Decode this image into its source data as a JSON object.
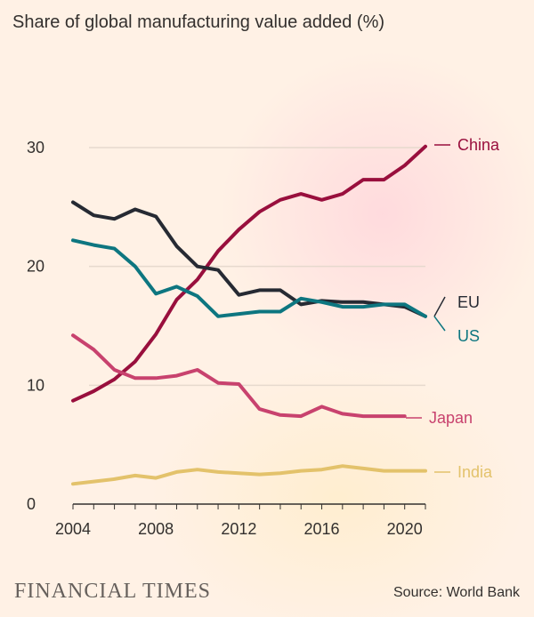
{
  "header": {
    "title": "Share of global manufacturing value added (%)"
  },
  "footer": {
    "brand": "FINANCIAL TIMES",
    "source": "Source: World Bank"
  },
  "chart_data": {
    "type": "line",
    "title": "Share of global manufacturing value added (%)",
    "xlabel": "",
    "ylabel": "",
    "xlim": [
      2004,
      2021
    ],
    "ylim": [
      0,
      30
    ],
    "x_ticks": [
      2004,
      2008,
      2012,
      2016,
      2020
    ],
    "y_ticks": [
      0,
      10,
      20,
      30
    ],
    "grid": true,
    "legend": "direct labels at right end of lines",
    "series": [
      {
        "name": "China",
        "color": "#990f3d",
        "x": [
          2004,
          2005,
          2006,
          2007,
          2008,
          2009,
          2010,
          2011,
          2012,
          2013,
          2014,
          2015,
          2016,
          2017,
          2018,
          2019,
          2020,
          2021
        ],
        "values": [
          8.7,
          9.5,
          10.5,
          12.0,
          14.3,
          17.2,
          18.9,
          21.3,
          23.1,
          24.6,
          25.6,
          26.1,
          25.6,
          26.1,
          27.3,
          27.3,
          28.5,
          30.1
        ]
      },
      {
        "name": "EU",
        "color": "#262a33",
        "x": [
          2004,
          2005,
          2006,
          2007,
          2008,
          2009,
          2010,
          2011,
          2012,
          2013,
          2014,
          2015,
          2016,
          2017,
          2018,
          2019,
          2020,
          2021
        ],
        "values": [
          25.4,
          24.3,
          24.0,
          24.8,
          24.2,
          21.7,
          20.0,
          19.7,
          17.6,
          18.0,
          18.0,
          16.8,
          17.1,
          17.0,
          17.0,
          16.8,
          16.6,
          15.8
        ]
      },
      {
        "name": "US",
        "color": "#0d7680",
        "x": [
          2004,
          2005,
          2006,
          2007,
          2008,
          2009,
          2010,
          2011,
          2012,
          2013,
          2014,
          2015,
          2016,
          2017,
          2018,
          2019,
          2020,
          2021
        ],
        "values": [
          22.2,
          21.8,
          21.5,
          20.0,
          17.7,
          18.3,
          17.5,
          15.8,
          16.0,
          16.2,
          16.2,
          17.3,
          17.0,
          16.6,
          16.6,
          16.8,
          16.8,
          15.8
        ]
      },
      {
        "name": "Japan",
        "color": "#c8426e",
        "x": [
          2004,
          2005,
          2006,
          2007,
          2008,
          2009,
          2010,
          2011,
          2012,
          2013,
          2014,
          2015,
          2016,
          2017,
          2018,
          2019,
          2020
        ],
        "values": [
          14.2,
          13.0,
          11.3,
          10.6,
          10.6,
          10.8,
          11.3,
          10.2,
          10.1,
          8.0,
          7.5,
          7.4,
          8.2,
          7.6,
          7.4,
          7.4,
          7.4
        ]
      },
      {
        "name": "India",
        "color": "#e3c26b",
        "x": [
          2004,
          2005,
          2006,
          2007,
          2008,
          2009,
          2010,
          2011,
          2012,
          2013,
          2014,
          2015,
          2016,
          2017,
          2018,
          2019,
          2020,
          2021
        ],
        "values": [
          1.7,
          1.9,
          2.1,
          2.4,
          2.2,
          2.7,
          2.9,
          2.7,
          2.6,
          2.5,
          2.6,
          2.8,
          2.9,
          3.2,
          3.0,
          2.8,
          2.8,
          2.8
        ]
      }
    ]
  }
}
